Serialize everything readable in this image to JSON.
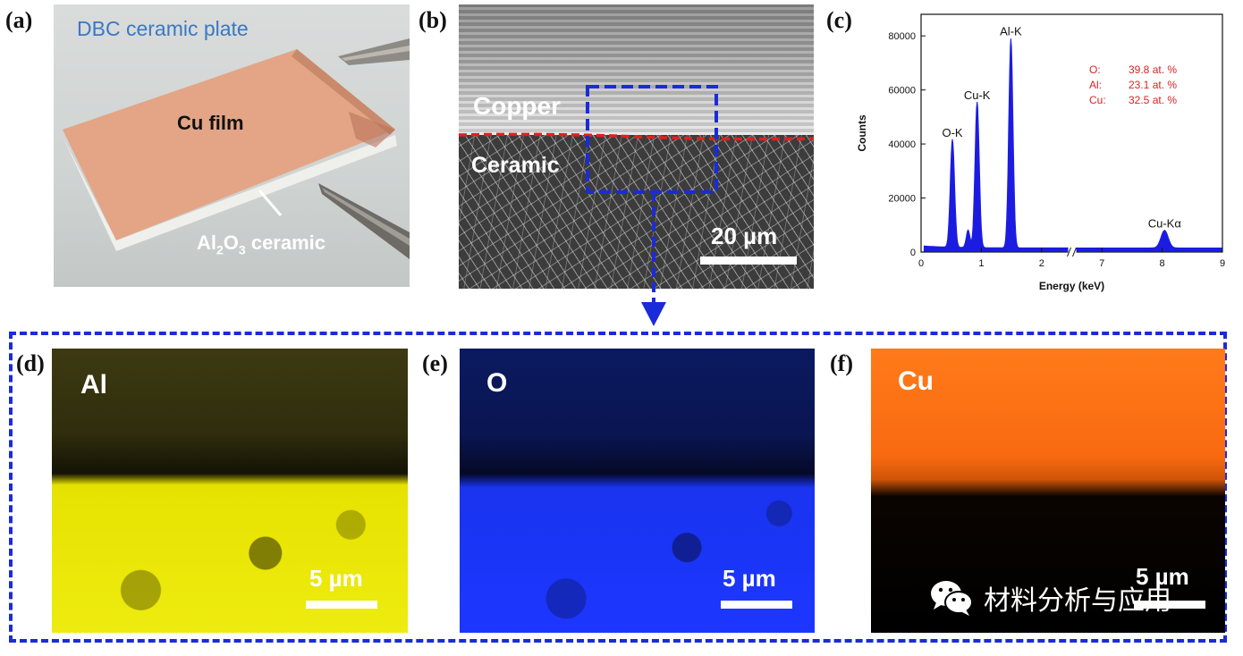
{
  "panel_labels": {
    "a": "(a)",
    "b": "(b)",
    "c": "(c)",
    "d": "(d)",
    "e": "(e)",
    "f": "(f)"
  },
  "panel_a": {
    "title": "DBC ceramic plate",
    "cu_label": "Cu film",
    "ceramic_label": {
      "pre": "Al",
      "sub1": "2",
      "mid": "O",
      "sub2": "3",
      "post": " ceramic"
    }
  },
  "panel_b": {
    "copper_label": "Copper",
    "ceramic_label": "Ceramic",
    "scale_label": "20 µm",
    "colors": {
      "interface": "#e02020",
      "box": "#1a2bd8"
    }
  },
  "panels_def": {
    "d": {
      "element": "Al",
      "scale_label": "5 µm",
      "color": "#e8e000"
    },
    "e": {
      "element": "O",
      "scale_label": "5 µm",
      "color": "#1a2fff"
    },
    "f": {
      "element": "Cu",
      "scale_label": "5 µm",
      "color": "#ff6a10"
    }
  },
  "watermark": {
    "text": "材料分析与应用",
    "icon": "wechat-icon"
  },
  "chart_data": {
    "type": "line",
    "xlabel": "Energy (keV)",
    "ylabel": "Counts",
    "ylim": [
      0,
      88000
    ],
    "x_ticks": [
      "0",
      "1",
      "2",
      "7",
      "8",
      "9"
    ],
    "y_ticks": [
      "0",
      "20000",
      "40000",
      "60000",
      "80000"
    ],
    "axis_break": "between 2.5 and 6.5 keV",
    "peaks": [
      {
        "label": "O-K",
        "x": 0.52,
        "y": 40000
      },
      {
        "label": "Cu-K",
        "x": 0.93,
        "y": 54000
      },
      {
        "label": "Al-K",
        "x": 1.49,
        "y": 77500
      },
      {
        "label": "Cu-Kα",
        "x": 8.04,
        "y": 6500
      }
    ],
    "composition": [
      {
        "element": "O:",
        "value": "39.8 at. %"
      },
      {
        "element": "Al:",
        "value": "23.1 at. %"
      },
      {
        "element": "Cu:",
        "value": "32.5 at. %"
      }
    ],
    "colors": {
      "spectrum": "#1010e0",
      "composition": "#d22222"
    }
  }
}
